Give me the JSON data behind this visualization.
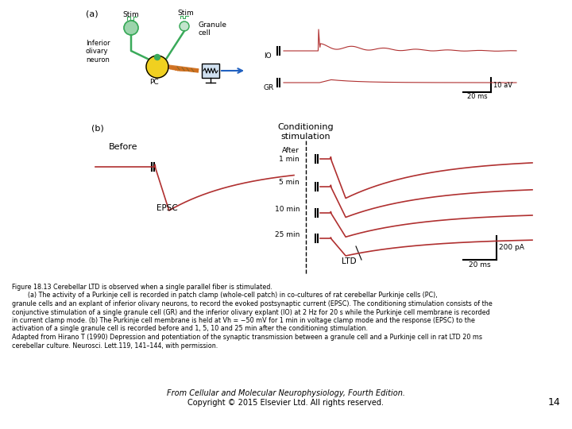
{
  "caption_line1": "Figure 18.13 Cerebellar LTD is observed when a single parallel fiber is stimulated.",
  "caption_line2": "        (a) The activity of a Purkinje cell is recorded in patch clamp (whole-cell patch) in co-cultures of rat cerebellar Purkinje cells (PC),",
  "caption_line3": "granule cells and an explant of inferior olivary neurons, to record the evoked postsynaptic current (EPSC). The conditioning stimulation consists of the",
  "caption_line4": "conjunctive stimulation of a single granule cell (GR) and the inferior olivary explant (IO) at 2 Hz for 20 s while the Purkinje cell membrane is recorded",
  "caption_line5": "in current clamp mode. (b) The Purkinje cell membrane is held at Vh = −50 mV for 1 min in voltage clamp mode and the response (EPSC) to the",
  "caption_line6": "activation of a single granule cell is recorded before and 1, 5, 10 and 25 min after the conditioning stimulation.",
  "caption_line7": "Adapted from Hirano T (1990) Depression and potentiation of the synaptic transmission between a granule cell and a Purkinje cell in rat LTD 20 ms",
  "caption_line8": "cerebellar culture. Neurosci. Lett.119, 141–144, with permission.",
  "footer_line1": "From Cellular and Molecular Neurophysiology, Fourth Edition.",
  "footer_line2": "Copyright © 2015 Elsevier Ltd. All rights reserved.",
  "page_number": "14",
  "bg_color": "#ffffff",
  "trace_color": "#b03030",
  "diagram_green": "#3aaa5a",
  "diagram_yellow": "#f0d020",
  "diagram_blue": "#2060c0",
  "diagram_orange": "#d07020"
}
